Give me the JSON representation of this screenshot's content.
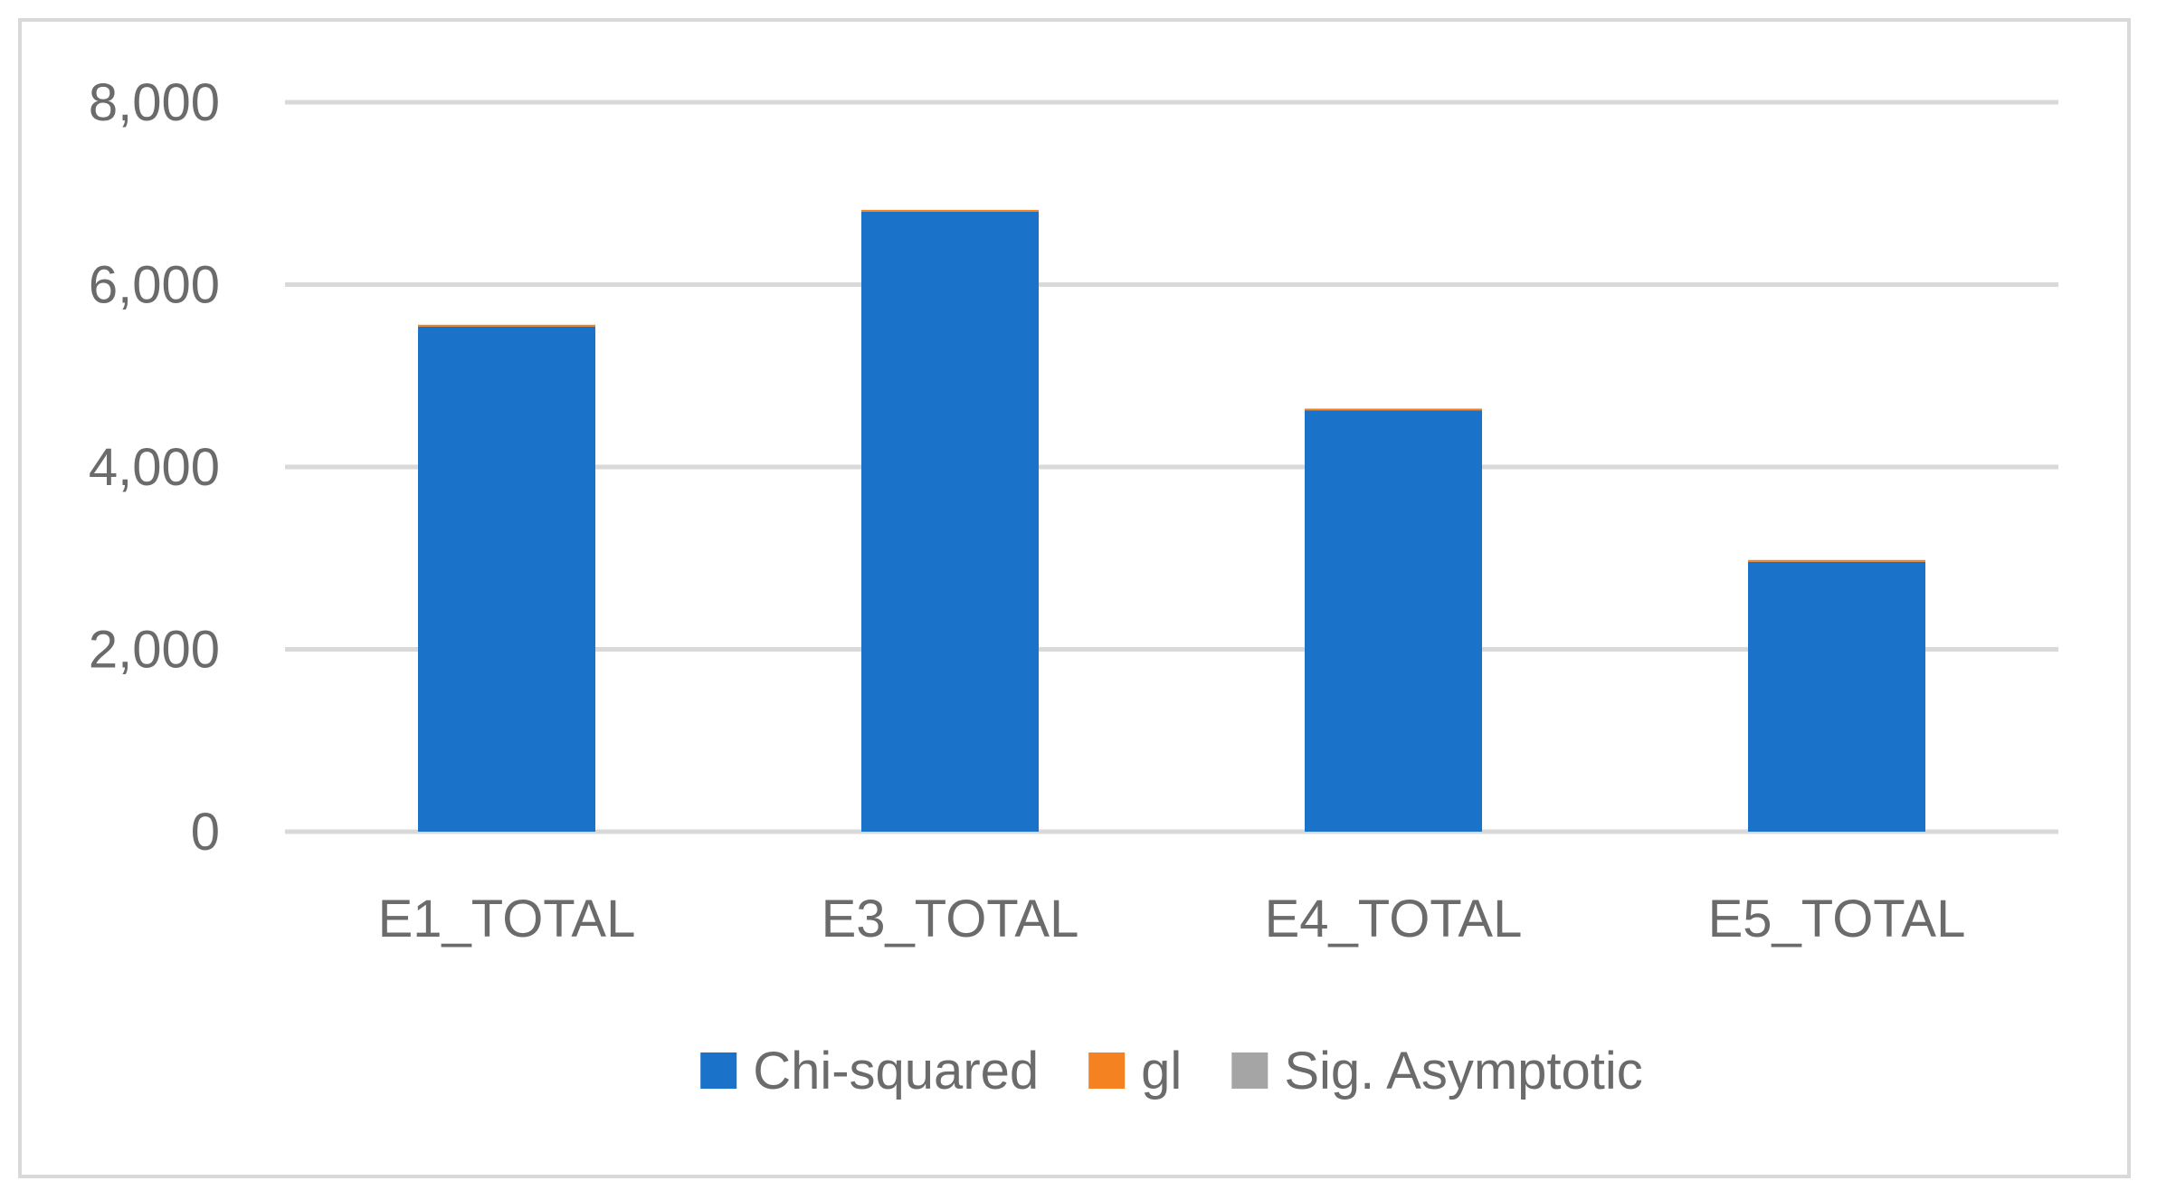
{
  "chart_data": {
    "type": "bar",
    "stacked": true,
    "title": "",
    "xlabel": "",
    "ylabel": "",
    "categories": [
      "E1_TOTAL",
      "E3_TOTAL",
      "E4_TOTAL",
      "E5_TOTAL"
    ],
    "series": [
      {
        "name": "Chi-squared",
        "color": "#1a73c8",
        "values": [
          5540,
          6800,
          4620,
          2960
        ]
      },
      {
        "name": "gl",
        "color": "#f58220",
        "values": [
          3,
          3,
          3,
          3
        ]
      },
      {
        "name": "Sig. Asymptotic",
        "color": "#a5a5a5",
        "values": [
          0,
          0,
          0,
          0
        ]
      }
    ],
    "ylim": [
      0,
      8000
    ],
    "yticks": [
      0,
      2000,
      4000,
      6000,
      8000
    ],
    "ytick_labels": [
      "0",
      "2,000",
      "4,000",
      "6,000",
      "8,000"
    ],
    "grid": true,
    "legend_position": "bottom"
  }
}
